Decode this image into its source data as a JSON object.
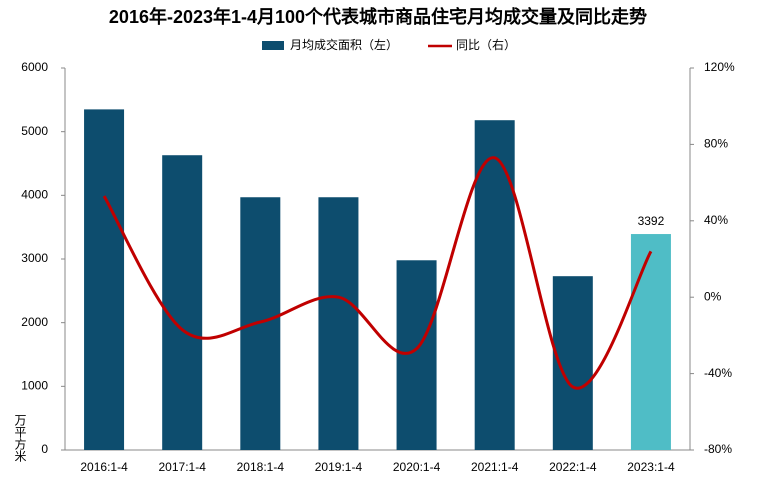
{
  "chart_data": {
    "type": "bar_line",
    "title": "2016年-2023年1-4月100个代表城市商品住宅月均成交量及同比走势",
    "y_label": "万平方米",
    "categories": [
      "2016:1-4",
      "2017:1-4",
      "2018:1-4",
      "2019:1-4",
      "2020:1-4",
      "2021:1-4",
      "2022:1-4",
      "2023:1-4"
    ],
    "series": [
      {
        "name": "月均成交面积（左）",
        "type": "bar",
        "color": "#0d4d6e",
        "highlight_color": "#4fbdc6",
        "values": [
          5350,
          4630,
          3970,
          3970,
          2980,
          5180,
          2730,
          3392
        ]
      },
      {
        "name": "同比（右）",
        "type": "line",
        "axis": "y2",
        "color": "#c00000",
        "values": [
          53,
          -17,
          -13,
          0,
          -27,
          73,
          -47,
          24
        ]
      }
    ],
    "highlight": 7,
    "ylim": [
      0,
      6000
    ],
    "yticks": [
      0,
      1000,
      2000,
      3000,
      4000,
      5000,
      6000
    ],
    "y2lim": [
      -80,
      120
    ],
    "y2ticks": [
      {
        "value": -80,
        "label": "-80%"
      },
      {
        "value": -40,
        "label": "-40%"
      },
      {
        "value": 0,
        "label": "0%"
      },
      {
        "value": 40,
        "label": "40%"
      },
      {
        "value": 80,
        "label": "80%"
      },
      {
        "value": 120,
        "label": "120%"
      }
    ],
    "grid": false
  }
}
